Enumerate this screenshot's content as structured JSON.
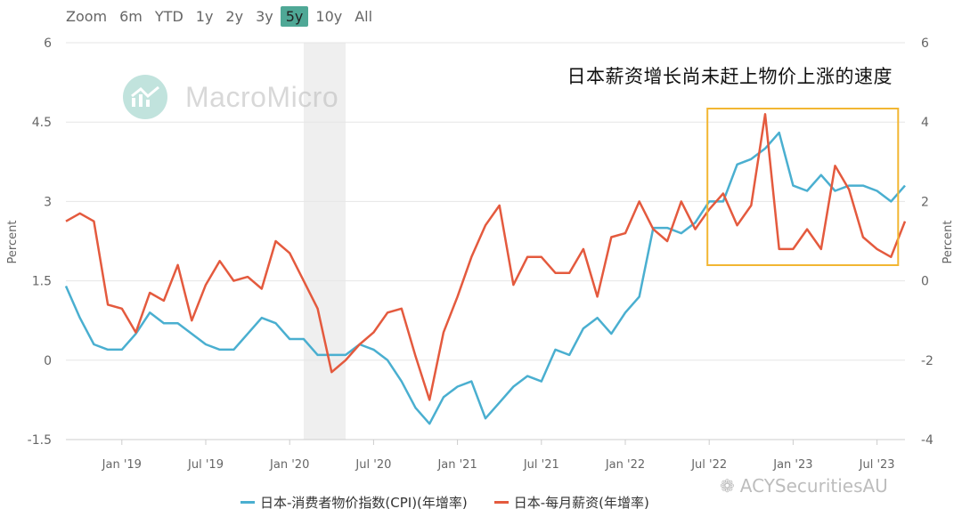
{
  "toolbar": {
    "zoom_label": "Zoom",
    "ranges": [
      "6m",
      "YTD",
      "1y",
      "2y",
      "3y",
      "5y",
      "10y",
      "All"
    ],
    "active_range": "5y"
  },
  "annotation": {
    "text": "日本薪资增长尚未赶上物价上涨的速度",
    "box_color": "#f2b632"
  },
  "watermark": {
    "text": "MacroMicro"
  },
  "credit": {
    "text": "ACYSecuritiesAU"
  },
  "colors": {
    "cpi": "#4aafd0",
    "wage": "#e45a3e",
    "recession_band": "#efefef",
    "active_button": "#4fa896"
  },
  "chart_data": {
    "type": "line",
    "x_tick_labels": [
      "Jan '19",
      "Jul '19",
      "Jan '20",
      "Jul '20",
      "Jan '21",
      "Jul '21",
      "Jan '22",
      "Jul '22",
      "Jan '23",
      "Jul '23"
    ],
    "x_start": "2018-09",
    "x_end": "2023-09",
    "shaded_period": [
      "2020-02",
      "2020-05"
    ],
    "left_axis": {
      "label": "Percent",
      "ylim": [
        -1.5,
        6
      ],
      "ticks": [
        "6",
        "4.5",
        "3",
        "1.5",
        "0",
        "-1.5"
      ]
    },
    "right_axis": {
      "label": "Percent",
      "ylim": [
        -4,
        6
      ],
      "ticks": [
        "6",
        "4",
        "2",
        "0",
        "-2",
        "-4"
      ]
    },
    "highlight_period": [
      "2022-07",
      "2023-08"
    ],
    "series": [
      {
        "name": "日本-消费者物价指数(CPI)(年增率)",
        "axis": "left",
        "values": [
          1.4,
          0.8,
          0.3,
          0.2,
          0.2,
          0.5,
          0.9,
          0.7,
          0.7,
          0.5,
          0.3,
          0.2,
          0.2,
          0.5,
          0.8,
          0.7,
          0.4,
          0.4,
          0.1,
          0.1,
          0.1,
          0.3,
          0.2,
          0.0,
          -0.4,
          -0.9,
          -1.2,
          -0.7,
          -0.5,
          -0.4,
          -1.1,
          -0.8,
          -0.5,
          -0.3,
          -0.4,
          0.2,
          0.1,
          0.6,
          0.8,
          0.5,
          0.9,
          1.2,
          2.5,
          2.5,
          2.4,
          2.6,
          3.0,
          3.0,
          3.7,
          3.8,
          4.0,
          4.3,
          3.3,
          3.2,
          3.5,
          3.2,
          3.3,
          3.3,
          3.2,
          3.0,
          3.3
        ]
      },
      {
        "name": "日本-每月薪资(年增率)",
        "axis": "right",
        "values": [
          1.5,
          1.7,
          1.5,
          -0.6,
          -0.7,
          -1.3,
          -0.3,
          -0.5,
          0.4,
          -1.0,
          -0.1,
          0.5,
          0.0,
          0.1,
          -0.2,
          1.0,
          0.7,
          0.0,
          -0.7,
          -2.3,
          -2.0,
          -1.6,
          -1.3,
          -0.8,
          -0.7,
          -1.9,
          -3.0,
          -1.3,
          -0.4,
          0.6,
          1.4,
          1.9,
          -0.1,
          0.6,
          0.6,
          0.2,
          0.2,
          0.8,
          -0.4,
          1.1,
          1.2,
          2.0,
          1.3,
          1.0,
          2.0,
          1.3,
          1.8,
          2.2,
          1.4,
          1.9,
          4.2,
          0.8,
          0.8,
          1.3,
          0.8,
          2.9,
          2.3,
          1.1,
          0.8,
          0.6,
          1.5
        ]
      }
    ]
  }
}
